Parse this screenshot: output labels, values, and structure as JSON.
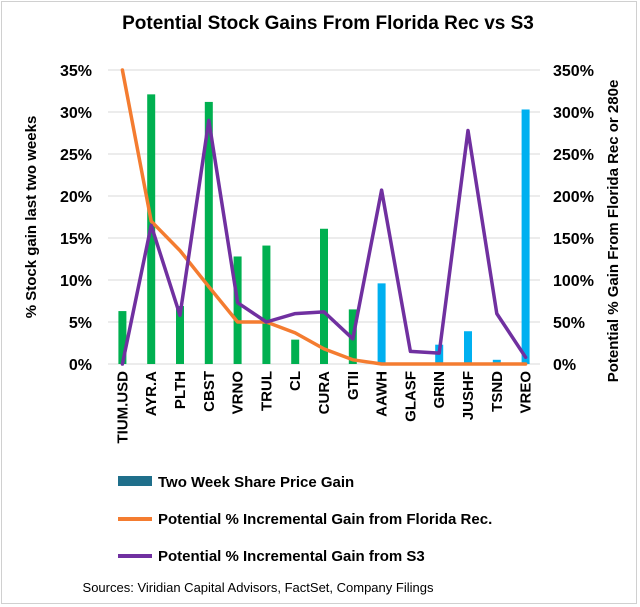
{
  "chart_data": {
    "type": "bar+line",
    "title": "Potential Stock Gains From Florida Rec vs S3",
    "ylabel": "% Stock gain last two weeks",
    "y2label": "Potential % Gain From Florida Rec or 280e",
    "ylim": [
      0,
      35
    ],
    "y2lim": [
      0,
      350
    ],
    "yticks": [
      "0%",
      "5%",
      "10%",
      "15%",
      "20%",
      "25%",
      "30%",
      "35%"
    ],
    "y2ticks": [
      "0%",
      "50%",
      "100%",
      "150%",
      "200%",
      "250%",
      "300%",
      "350%"
    ],
    "categories": [
      "TIUM.USD",
      "AYR.A",
      "PLTH",
      "CBST",
      "VRNO",
      "TRUL",
      "CL",
      "CURA",
      "GTII",
      "AAWH",
      "GLASF",
      "GRIN",
      "JUSHF",
      "TSND",
      "VREO"
    ],
    "bar_colors": [
      "#00b050",
      "#00b050",
      "#00b050",
      "#00b050",
      "#00b050",
      "#00b050",
      "#00b050",
      "#00b050",
      "#00b050",
      "#00b0f0",
      "#00b0f0",
      "#00b0f0",
      "#00b0f0",
      "#00b0f0",
      "#00b0f0"
    ],
    "series": [
      {
        "name": "Two Week Share Price Gain",
        "kind": "bar",
        "axis": "left",
        "legend_color": "#1f6f8b",
        "values": [
          6.3,
          32.1,
          6.9,
          31.2,
          12.8,
          14.1,
          2.9,
          16.1,
          6.5,
          9.6,
          0.0,
          2.3,
          3.9,
          0.5,
          30.3
        ]
      },
      {
        "name": "Potential % Incremental Gain from Florida Rec.",
        "kind": "line",
        "axis": "right",
        "color": "#f47c30",
        "values": [
          350,
          170,
          135,
          92,
          50,
          50,
          37,
          18,
          5,
          0,
          0,
          0,
          0,
          0,
          0
        ]
      },
      {
        "name": "Potential % Incremental Gain from S3",
        "kind": "line",
        "axis": "right",
        "color": "#7030a0",
        "values": [
          0,
          165,
          58,
          290,
          73,
          50,
          60,
          62,
          30,
          207,
          15,
          13,
          278,
          60,
          8
        ]
      }
    ],
    "source": "Sources: Viridian Capital Advisors, FactSet, Company Filings"
  }
}
